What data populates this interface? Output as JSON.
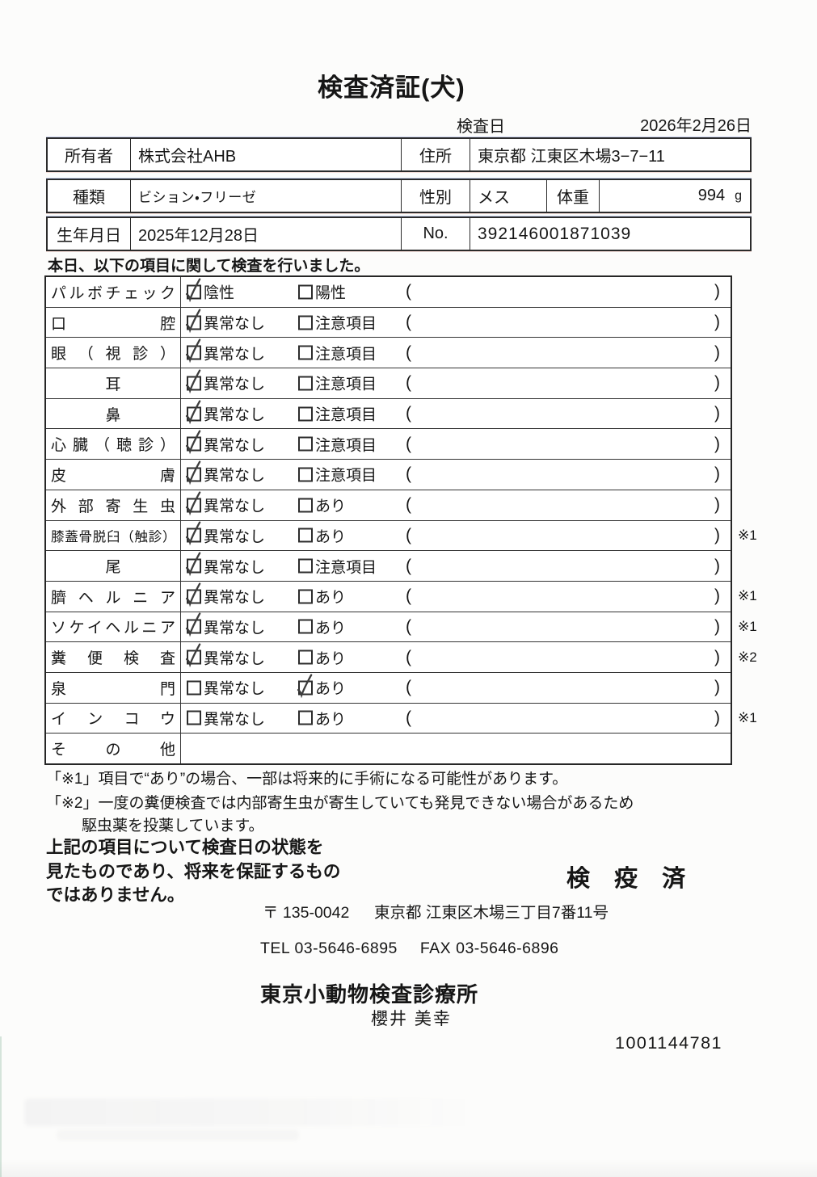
{
  "doc": {
    "title": "検査済証(犬)",
    "exam_date_label": "検査日",
    "exam_date": "2026年2月26日",
    "intro": "本日、以下の項目に関して検査を行いました。"
  },
  "info": {
    "owner_label": "所有者",
    "owner": "株式会社AHB",
    "address_label": "住所",
    "address": "東京都 江東区木場3−7−11",
    "breed_label": "種類",
    "breed": "ビション・フリーゼ",
    "sex_label": "性別",
    "sex": "メス",
    "weight_label": "体重",
    "weight": "994",
    "weight_unit": "g",
    "birth_label": "生年月日",
    "birth": "2025年12月28日",
    "no_label": "No.",
    "no": "392146001871039"
  },
  "checklist": {
    "paren_open": "(",
    "paren_close": ")",
    "rows": [
      {
        "label": "パルボチェック",
        "opt1": "陰性",
        "opt2": "陽性",
        "checked": "opt1",
        "note": ""
      },
      {
        "label": "口腔",
        "opt1": "異常なし",
        "opt2": "注意項目",
        "checked": "opt1",
        "note": ""
      },
      {
        "label": "眼（視診）",
        "opt1": "異常なし",
        "opt2": "注意項目",
        "checked": "opt1",
        "note": ""
      },
      {
        "label": "耳",
        "opt1": "異常なし",
        "opt2": "注意項目",
        "checked": "opt1",
        "note": ""
      },
      {
        "label": "鼻",
        "opt1": "異常なし",
        "opt2": "注意項目",
        "checked": "opt1",
        "note": ""
      },
      {
        "label": "心臓（聴診）",
        "opt1": "異常なし",
        "opt2": "注意項目",
        "checked": "opt1",
        "note": ""
      },
      {
        "label": "皮膚",
        "opt1": "異常なし",
        "opt2": "注意項目",
        "checked": "opt1",
        "note": ""
      },
      {
        "label": "外部寄生虫",
        "opt1": "異常なし",
        "opt2": "あり",
        "checked": "opt1",
        "note": ""
      },
      {
        "label": "膝蓋骨脱臼（触診）",
        "opt1": "異常なし",
        "opt2": "あり",
        "checked": "opt1",
        "note": "※1"
      },
      {
        "label": "尾",
        "opt1": "異常なし",
        "opt2": "注意項目",
        "checked": "opt1",
        "note": ""
      },
      {
        "label": "臍ヘルニア",
        "opt1": "異常なし",
        "opt2": "あり",
        "checked": "opt1",
        "note": "※1"
      },
      {
        "label": "ソケイヘルニア",
        "opt1": "異常なし",
        "opt2": "あり",
        "checked": "opt1",
        "note": "※1"
      },
      {
        "label": "糞便検査",
        "opt1": "異常なし",
        "opt2": "あり",
        "checked": "opt1",
        "note": "※2"
      },
      {
        "label": "泉門",
        "opt1": "異常なし",
        "opt2": "あり",
        "checked": "opt2",
        "note": ""
      },
      {
        "label": "インコウ",
        "opt1": "異常なし",
        "opt2": "あり",
        "checked": "",
        "note": "※1"
      },
      {
        "label": "その他",
        "opt1": "",
        "opt2": "",
        "checked": "",
        "note": ""
      }
    ]
  },
  "notes": {
    "note1": "「※1」項目で“あり”の場合、一部は将来的に手術になる可能性があります。",
    "note2_line1": "「※2」一度の糞便検査では内部寄生虫が寄生していても発見できない場合があるため",
    "note2_line2": "駆虫薬を投薬しています。"
  },
  "disclaimer": {
    "line1": "上記の項目について検査日の状態を",
    "line2": "見たものであり、将来を保証するもの",
    "line3": "ではありません。"
  },
  "stamp": "検 疫 済",
  "footer": {
    "postal": "〒 135-0042",
    "address": "東京都 江東区木場三丁目7番11号",
    "tel": "TEL 03-5646-6895",
    "fax": "FAX 03-5646-6896",
    "clinic": "東京小動物検査診療所",
    "vet": "櫻井 美幸",
    "serial": "1001144781"
  }
}
